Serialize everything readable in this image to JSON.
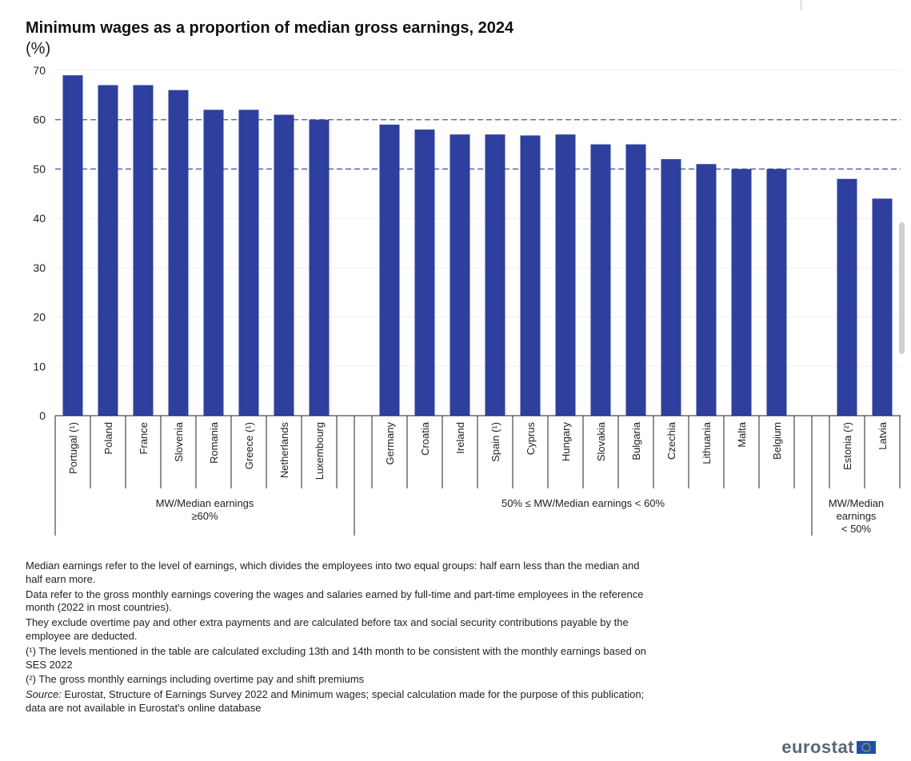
{
  "title": "Minimum wages as a proportion of median gross earnings, 2024",
  "unit": "(%)",
  "chart_data": {
    "type": "bar",
    "ylim": [
      0,
      70
    ],
    "yticks": [
      0,
      10,
      20,
      30,
      40,
      50,
      60,
      70
    ],
    "reference_lines": [
      60,
      50
    ],
    "bar_color": "#2e3f9e",
    "groups": [
      {
        "label": [
          "MW/Median earnings",
          "≥60%"
        ],
        "categories": [
          "Portugal (¹)",
          "Poland",
          "France",
          "Slovenia",
          "Romania",
          "Greece (¹)",
          "Netherlands",
          "Luxembourg"
        ],
        "values": [
          69,
          67,
          67,
          66,
          62,
          62,
          61,
          60
        ]
      },
      {
        "label": [
          "50% ≤ MW/Median earnings < 60%"
        ],
        "categories": [
          "Germany",
          "Croatia",
          "Ireland",
          "Spain (¹)",
          "Cyprus",
          "Hungary",
          "Slovakia",
          "Bulgaria",
          "Czechia",
          "Lithuania",
          "Malta",
          "Belgium"
        ],
        "values": [
          59,
          58,
          57,
          57,
          56.8,
          57,
          55,
          55,
          52,
          51,
          50,
          50
        ]
      },
      {
        "label": [
          "MW/Median",
          "earnings",
          "< 50%"
        ],
        "categories": [
          "Estonia (²)",
          "Latvia"
        ],
        "values": [
          48,
          44
        ]
      }
    ]
  },
  "notes": {
    "n1": "Median earnings refer to the level of earnings, which divides the employees into two equal groups: half earn less than the median and half earn more.",
    "n2": "Data refer to the gross monthly earnings covering the wages and salaries earned by full-time and part-time employees in the reference month (2022 in most countries).",
    "n3": "They exclude overtime pay and other extra payments and are calculated before tax and social security contributions payable by the employee are deducted.",
    "n4": "(¹) The levels mentioned in the table are calculated excluding 13th and 14th month to be consistent with the monthly earnings based on SES 2022",
    "n5": "(²) The gross monthly earnings  including overtime pay and shift premiums",
    "source_label": "Source:",
    "source_text": " Eurostat, Structure of Earnings Survey 2022 and Minimum wages; special calculation made for the purpose of this publication; data are not available in Eurostat's online database"
  },
  "logo": "eurostat"
}
